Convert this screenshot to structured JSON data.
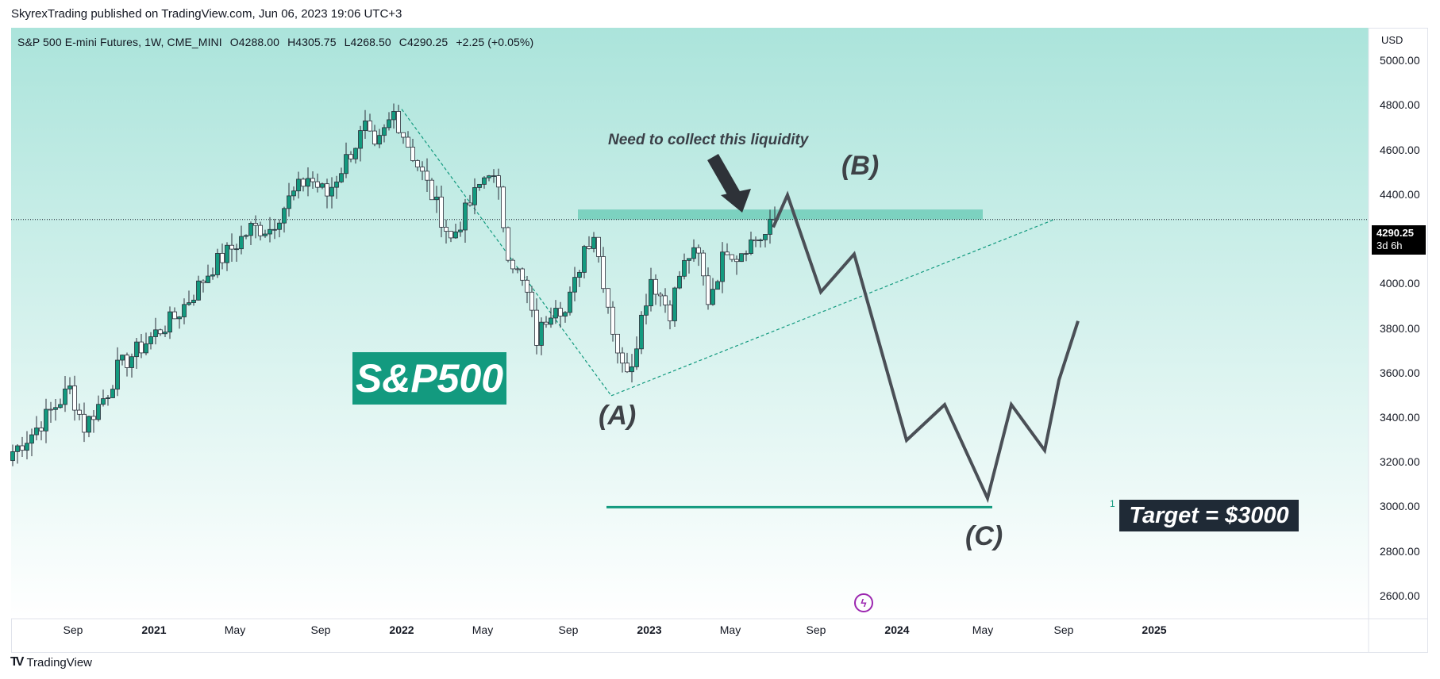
{
  "header": {
    "publisher_line": "SkyrexTrading published on TradingView.com, Jun 06, 2023 19:06 UTC+3"
  },
  "symbol": {
    "name": "S&P 500 E-mini Futures, 1W, CME_MINI",
    "open": "O4288.00",
    "high": "H4305.75",
    "low": "L4268.50",
    "close": "C4290.25",
    "change": "+2.25 (+0.05%)"
  },
  "axis": {
    "currency": "USD",
    "price_tag": "4290.25",
    "price_tag_sub": "3d 6h"
  },
  "footer": {
    "brand": "TradingView"
  },
  "annotations": {
    "title_box": "S&P500",
    "liquidity_note": "Need to collect this liquidity",
    "wave_a": "(A)",
    "wave_b": "(B)",
    "wave_c": "(C)",
    "target": "Target = $3000",
    "target_marker": "1"
  },
  "colors": {
    "bull": "#139a7f",
    "bear": "#ffffff",
    "wick": "#2a2e39",
    "zone": "#6fcdb8",
    "projection": "#4a4f56",
    "target_line": "#139a7f",
    "bg_top": "#abe4db",
    "bg_bottom": "#ffffff"
  },
  "chart_data": {
    "type": "candlestick",
    "title": "S&P 500 E-mini Futures, 1W, CME_MINI",
    "ylabel": "USD",
    "ylim": [
      2500,
      5150
    ],
    "y_ticks": [
      2600,
      2800,
      3000,
      3200,
      3400,
      3600,
      3800,
      4000,
      4200,
      4400,
      4600,
      4800,
      5000
    ],
    "y_tick_labels": [
      "2600.00",
      "2800.00",
      "3000.00",
      "3200.00",
      "3400.00",
      "3600.00",
      "3800.00",
      "4000.00",
      "4200.00",
      "4400.00",
      "4600.00",
      "4800.00",
      "5000.00"
    ],
    "x_range_weeks": [
      0,
      287
    ],
    "x_ticks": [
      {
        "label": "Sep",
        "week": 13,
        "year": false
      },
      {
        "label": "2021",
        "week": 30,
        "year": true
      },
      {
        "label": "May",
        "week": 47,
        "year": false
      },
      {
        "label": "Sep",
        "week": 65,
        "year": false
      },
      {
        "label": "2022",
        "week": 82,
        "year": true
      },
      {
        "label": "May",
        "week": 99,
        "year": false
      },
      {
        "label": "Sep",
        "week": 117,
        "year": false
      },
      {
        "label": "2023",
        "week": 134,
        "year": true
      },
      {
        "label": "May",
        "week": 151,
        "year": false
      },
      {
        "label": "Sep",
        "week": 169,
        "year": false
      },
      {
        "label": "2024",
        "week": 186,
        "year": true
      },
      {
        "label": "May",
        "week": 204,
        "year": false
      },
      {
        "label": "Sep",
        "week": 221,
        "year": false
      },
      {
        "label": "2025",
        "week": 240,
        "year": true
      }
    ],
    "last_price": 4290.25,
    "anchors": [
      [
        0,
        3250
      ],
      [
        4,
        3330
      ],
      [
        8,
        3430
      ],
      [
        12,
        3530
      ],
      [
        15,
        3360
      ],
      [
        20,
        3520
      ],
      [
        22,
        3620
      ],
      [
        26,
        3700
      ],
      [
        30,
        3780
      ],
      [
        34,
        3850
      ],
      [
        38,
        3960
      ],
      [
        42,
        4080
      ],
      [
        46,
        4160
      ],
      [
        50,
        4250
      ],
      [
        54,
        4250
      ],
      [
        58,
        4380
      ],
      [
        62,
        4480
      ],
      [
        66,
        4400
      ],
      [
        70,
        4560
      ],
      [
        74,
        4700
      ],
      [
        76,
        4590
      ],
      [
        80,
        4770
      ],
      [
        84,
        4580
      ],
      [
        88,
        4400
      ],
      [
        92,
        4200
      ],
      [
        96,
        4360
      ],
      [
        100,
        4520
      ],
      [
        102,
        4400
      ],
      [
        104,
        4150
      ],
      [
        108,
        3950
      ],
      [
        110,
        3750
      ],
      [
        112,
        3850
      ],
      [
        114,
        3930
      ],
      [
        116,
        3870
      ],
      [
        118,
        4000
      ],
      [
        120,
        4170
      ],
      [
        122,
        4230
      ],
      [
        124,
        4020
      ],
      [
        126,
        3800
      ],
      [
        128,
        3620
      ],
      [
        130,
        3660
      ],
      [
        132,
        3850
      ],
      [
        134,
        4030
      ],
      [
        136,
        3950
      ],
      [
        138,
        3880
      ],
      [
        140,
        4040
      ],
      [
        142,
        4130
      ],
      [
        144,
        4120
      ],
      [
        146,
        3930
      ],
      [
        148,
        4050
      ],
      [
        150,
        4170
      ],
      [
        152,
        4130
      ],
      [
        154,
        4180
      ],
      [
        156,
        4200
      ],
      [
        158,
        4220
      ],
      [
        160,
        4290
      ]
    ],
    "zone": {
      "label": "Need to collect this liquidity",
      "from_week": 119,
      "to_week": 204,
      "low": 4290,
      "high": 4335
    },
    "triangle": {
      "a": [
        82,
        4785
      ],
      "apex": [
        126,
        3500
      ],
      "b": [
        219,
        4290
      ]
    },
    "projection_path": [
      [
        160,
        4255
      ],
      [
        163,
        4400
      ],
      [
        170,
        3965
      ],
      [
        177,
        4135
      ],
      [
        188,
        3300
      ],
      [
        196,
        3460
      ],
      [
        205,
        3040
      ],
      [
        210,
        3460
      ],
      [
        217,
        3255
      ],
      [
        220,
        3570
      ],
      [
        224,
        3835
      ]
    ],
    "target_line": {
      "value": 3000,
      "from_week": 125,
      "to_week": 206
    },
    "wave_labels": [
      {
        "label": "(A)",
        "week": 127,
        "price": 3400
      },
      {
        "label": "(B)",
        "week": 178,
        "price": 4520
      },
      {
        "label": "(C)",
        "week": 204,
        "price": 2860
      }
    ],
    "target_label": "Target = $3000"
  }
}
